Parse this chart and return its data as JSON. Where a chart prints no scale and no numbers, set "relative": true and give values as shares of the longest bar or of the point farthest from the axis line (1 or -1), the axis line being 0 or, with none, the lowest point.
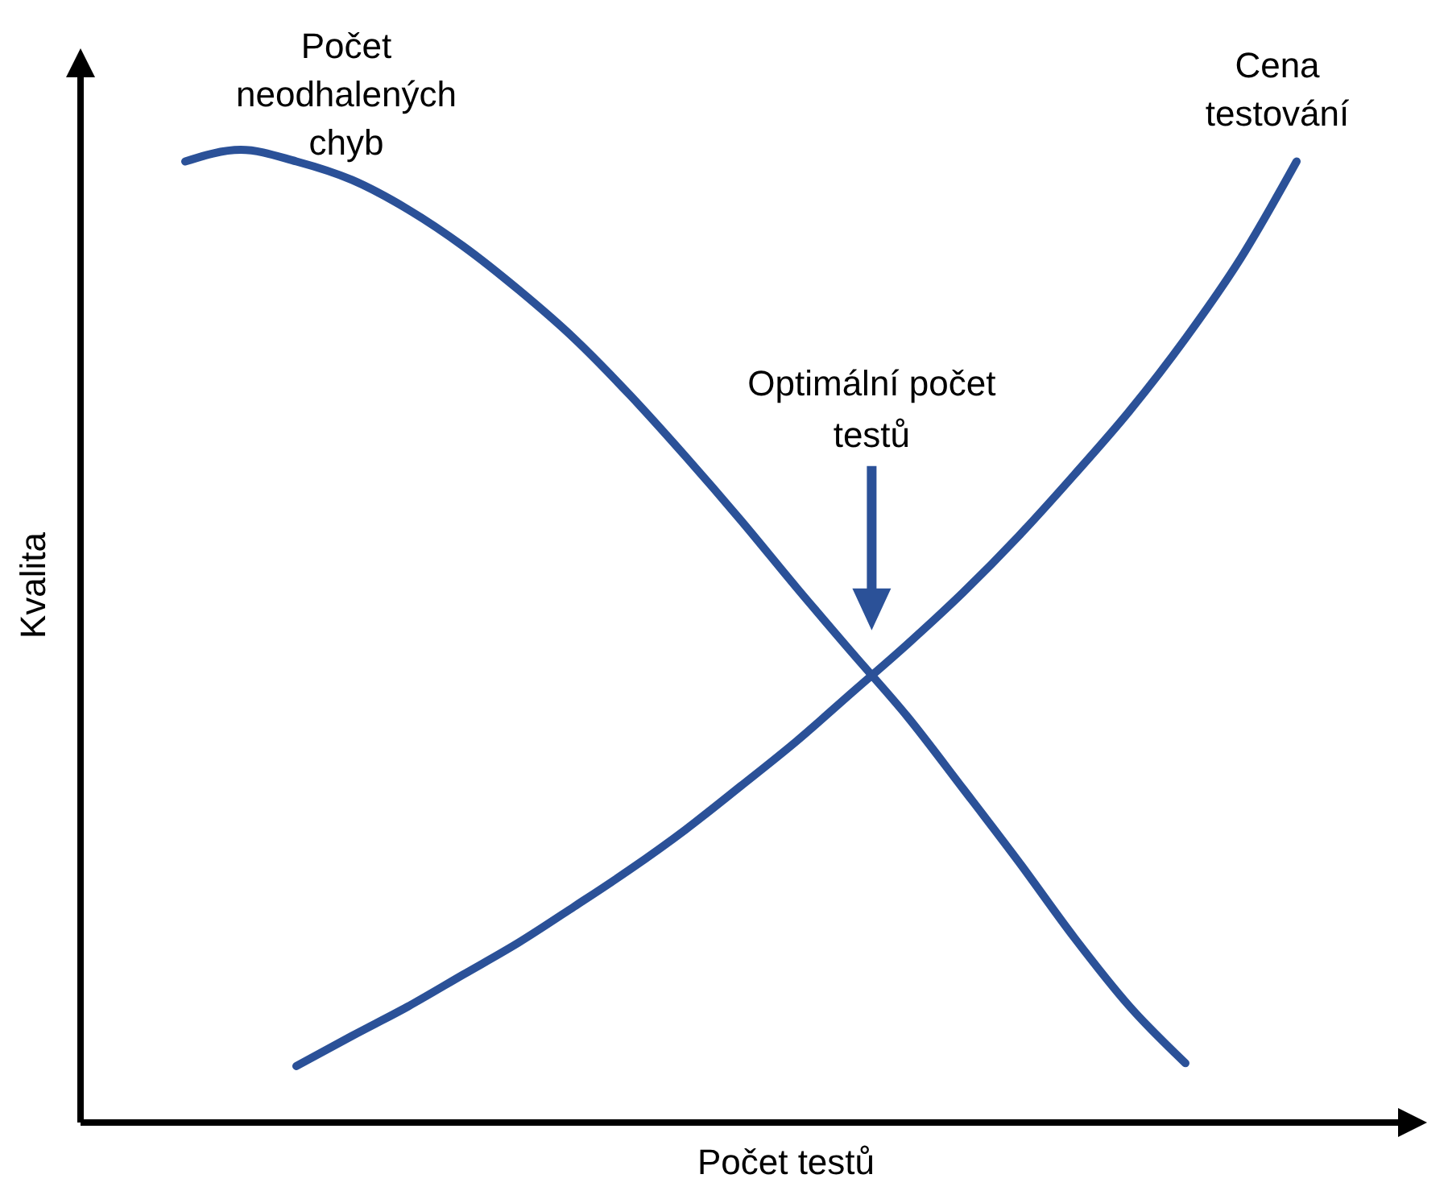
{
  "chart_data": {
    "type": "line",
    "relative": true,
    "xlabel": "Počet testů",
    "ylabel": "Kvalita",
    "categories": [
      null,
      null,
      null,
      null,
      null,
      null,
      null,
      null,
      null,
      null,
      null,
      null,
      null,
      null,
      null,
      null,
      null,
      null,
      null,
      null,
      null
    ],
    "series": [
      {
        "name": "Počet neodhalených chyb",
        "color": "#2b5198",
        "values": [
          0.988,
          1.0,
          0.988,
          0.969,
          0.939,
          0.901,
          0.856,
          0.806,
          0.748,
          0.685,
          0.619,
          0.55,
          0.483,
          0.417,
          0.343,
          0.268,
          0.19,
          0.119,
          0.061,
          null,
          null
        ]
      },
      {
        "name": "Cena testování",
        "color": "#2b5198",
        "values": [
          null,
          null,
          0.058,
          0.089,
          0.119,
          0.152,
          0.185,
          0.222,
          0.26,
          0.301,
          0.346,
          0.392,
          0.442,
          0.492,
          0.545,
          0.603,
          0.666,
          0.732,
          0.806,
          0.889,
          0.988
        ]
      }
    ],
    "annotations": [
      "Optimální počet testů"
    ]
  }
}
